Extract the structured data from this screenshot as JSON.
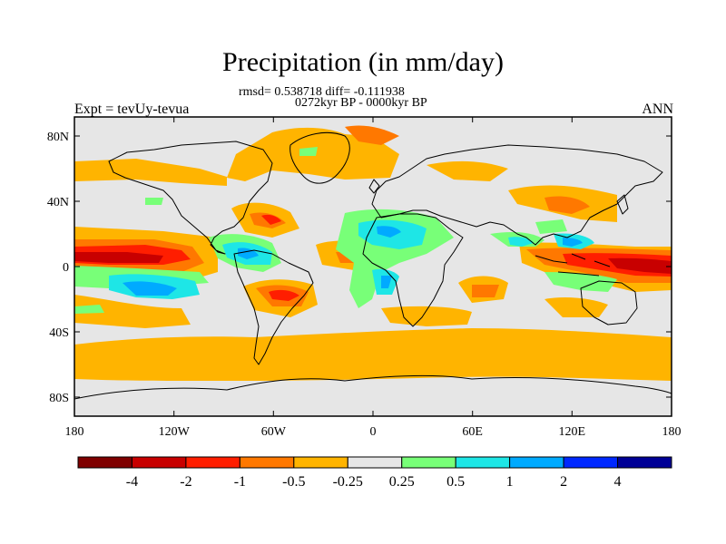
{
  "title": "Precipitation (in mm/day)",
  "stats_line": "rmsd= 0.538718 diff= -0.111938",
  "period_line": "0272kyr BP - 0000kyr BP",
  "experiment": "Expt = tevUy-tevua",
  "season": "ANN",
  "y_ticks": [
    "80N",
    "40N",
    "0",
    "40S",
    "80S"
  ],
  "x_ticks": [
    "180",
    "120W",
    "60W",
    "0",
    "60E",
    "120E",
    "180"
  ],
  "colorbar": {
    "colors": [
      "#7f0000",
      "#c80000",
      "#ff1e00",
      "#ff7800",
      "#ffb400",
      "#e6e6e6",
      "#78ff78",
      "#1ee6e6",
      "#00aaff",
      "#0028ff",
      "#000096"
    ],
    "labels": [
      "-4",
      "-2",
      "-1",
      "-0.5",
      "-0.25",
      "0.25",
      "0.5",
      "1",
      "2",
      "4"
    ]
  }
}
